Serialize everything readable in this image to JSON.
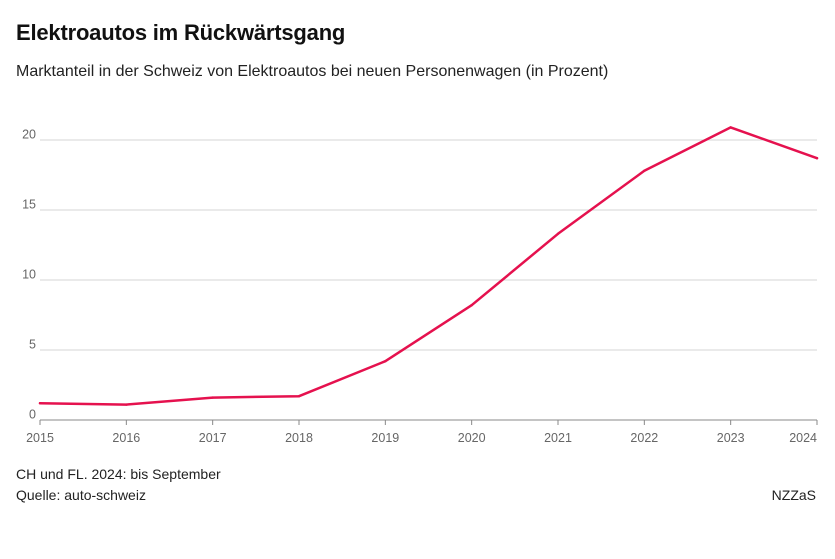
{
  "header": {
    "title": "Elektroautos im Rückwärtsgang",
    "subtitle": "Marktanteil in der Schweiz von Elektroautos bei neuen Personenwagen (in Prozent)"
  },
  "footer": {
    "note": "CH und FL. 2024: bis September",
    "source": "Quelle: auto-schweiz",
    "brand": "NZZaS"
  },
  "colors": {
    "line": "#e5114e",
    "grid": "#d6d6d6"
  },
  "chart_data": {
    "type": "line",
    "title": "Elektroautos im Rückwärtsgang",
    "subtitle": "Marktanteil in der Schweiz von Elektroautos bei neuen Personenwagen (in Prozent)",
    "x": [
      "2015",
      "2016",
      "2017",
      "2018",
      "2019",
      "2020",
      "2021",
      "2022",
      "2023",
      "2024"
    ],
    "series": [
      {
        "values": [
          1.2,
          1.1,
          1.6,
          1.7,
          4.2,
          8.2,
          13.3,
          17.8,
          20.9,
          18.7
        ]
      }
    ],
    "ylim": [
      0,
      20
    ],
    "yticks": [
      0,
      5,
      10,
      15,
      20
    ],
    "grid": true,
    "legend": "none"
  }
}
